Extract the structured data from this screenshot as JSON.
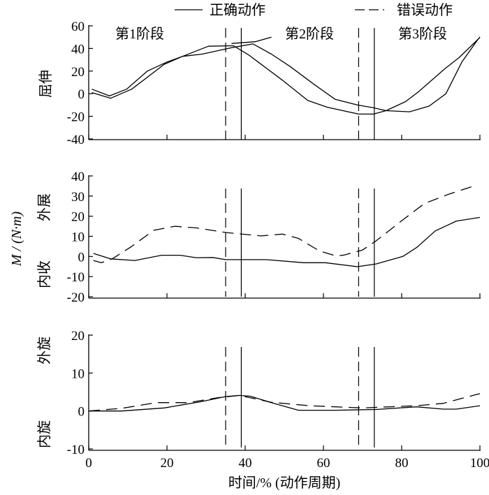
{
  "chart_data": [
    {
      "type": "line",
      "panel": "top",
      "ylabel": "屈伸",
      "ylim": [
        -40,
        60
      ],
      "yticks": [
        -40,
        -20,
        0,
        20,
        40,
        60
      ],
      "xlim": [
        0,
        100
      ],
      "xticks": [
        0,
        20,
        40,
        60,
        80,
        100
      ],
      "phase_labels": [
        "第1阶段",
        "第2阶段",
        "第3阶段"
      ],
      "series": [
        {
          "name": "正确动作",
          "style": "solid",
          "x": [
            0.8,
            5.3,
            9.7,
            15,
            20,
            24,
            30.6,
            37,
            41,
            43.3,
            49.5,
            56,
            61,
            69,
            72.8,
            76,
            81,
            84.4,
            91,
            94.7,
            99.5,
            100
          ],
          "y": [
            4,
            -2,
            4,
            20,
            28,
            33,
            42,
            42.4,
            34,
            28,
            12,
            -6,
            -12,
            -18,
            -18,
            -15,
            -7,
            2,
            22,
            32,
            48,
            50
          ]
        },
        {
          "name": "错误动作",
          "style": "solid",
          "x": [
            0.8,
            5.6,
            11,
            19.3,
            24,
            29,
            37,
            42,
            46.7,
            51.5,
            57.7,
            63,
            68.7,
            72.8,
            76,
            82,
            87,
            91.3,
            95.4,
            99.5,
            100
          ],
          "y": [
            1,
            -4,
            4,
            26,
            33,
            35,
            41,
            44,
            35,
            24,
            8,
            -5,
            -10,
            -12.5,
            -15,
            -16,
            -11,
            0,
            28,
            48,
            50
          ]
        },
        {
          "name": "",
          "style": "solid",
          "x": [
            36.5,
            42.6,
            46.7
          ],
          "y": [
            44.4,
            46,
            50
          ]
        }
      ]
    },
    {
      "type": "line",
      "panel": "middle",
      "ylabel": "M / (N·m)",
      "ylabel_upper": "外展",
      "ylabel_lower": "内收",
      "ylim": [
        -20,
        40
      ],
      "yticks": [
        -20,
        -10,
        0,
        10,
        20,
        30,
        40
      ],
      "xlim": [
        0,
        100
      ],
      "series": [
        {
          "name": "正确动作",
          "style": "solid",
          "x": [
            1.2,
            5.6,
            11.8,
            18.6,
            23.4,
            27.5,
            31.7,
            35,
            45.4,
            55,
            60.5,
            68.7,
            73.5,
            80.3,
            83.8,
            88.6,
            94,
            100
          ],
          "y": [
            1.5,
            -1.2,
            -2,
            0.6,
            0.6,
            -0.6,
            -0.5,
            -1.6,
            -1.6,
            -3.1,
            -3.1,
            -5.1,
            -3.7,
            0,
            4.4,
            12.7,
            17.6,
            19.4
          ]
        },
        {
          "name": "错误动作",
          "style": "dashed",
          "x": [
            1.2,
            3.2,
            6,
            11,
            16.6,
            22,
            27.5,
            35,
            44,
            49.5,
            53.6,
            59,
            63.2,
            65.3,
            70,
            73.5,
            80.3,
            85.8,
            92,
            97.8
          ],
          "y": [
            -2,
            -3.1,
            -1.2,
            5,
            13,
            15,
            14.2,
            11.9,
            10.2,
            11.1,
            9,
            2.7,
            0.3,
            0.7,
            3.2,
            7.8,
            18.2,
            26.3,
            30.9,
            34.6
          ]
        }
      ]
    },
    {
      "type": "line",
      "panel": "bottom",
      "ylabel_upper": "外旋",
      "ylabel_lower": "内旋",
      "ylim": [
        -10,
        20
      ],
      "yticks": [
        -10,
        0,
        10,
        20
      ],
      "xlim": [
        0,
        100
      ],
      "xticks": [
        0,
        20,
        40,
        60,
        80,
        100
      ],
      "xlabel": "时间/% (动作周期)",
      "series": [
        {
          "name": "正确动作",
          "style": "solid",
          "x": [
            0,
            8.4,
            19.3,
            28.9,
            35,
            38.5,
            41.3,
            46.7,
            53.6,
            63.2,
            73.5,
            83.8,
            90.6,
            94,
            100
          ],
          "y": [
            0,
            0,
            0.8,
            2.5,
            3.8,
            4.1,
            3.9,
            2.2,
            0.2,
            0.2,
            0.4,
            1.1,
            0.5,
            0.5,
            1.4
          ]
        },
        {
          "name": "错误动作",
          "style": "dashed",
          "x": [
            0,
            8.4,
            17.3,
            25.5,
            33,
            38.5,
            46.7,
            56.4,
            70,
            83.8,
            90.6,
            100
          ],
          "y": [
            0,
            0.7,
            2.2,
            2.2,
            3.5,
            4.1,
            2.3,
            1.4,
            0.8,
            1.4,
            2,
            4.6
          ]
        }
      ]
    }
  ],
  "phase_boundaries": {
    "wrong_action": [
      35,
      69
    ],
    "correct_action": [
      39,
      73
    ]
  },
  "legend": {
    "items": [
      {
        "label": "正确动作",
        "style": "solid"
      },
      {
        "label": "错误动作",
        "style": "dashed"
      }
    ],
    "placement": "top"
  }
}
